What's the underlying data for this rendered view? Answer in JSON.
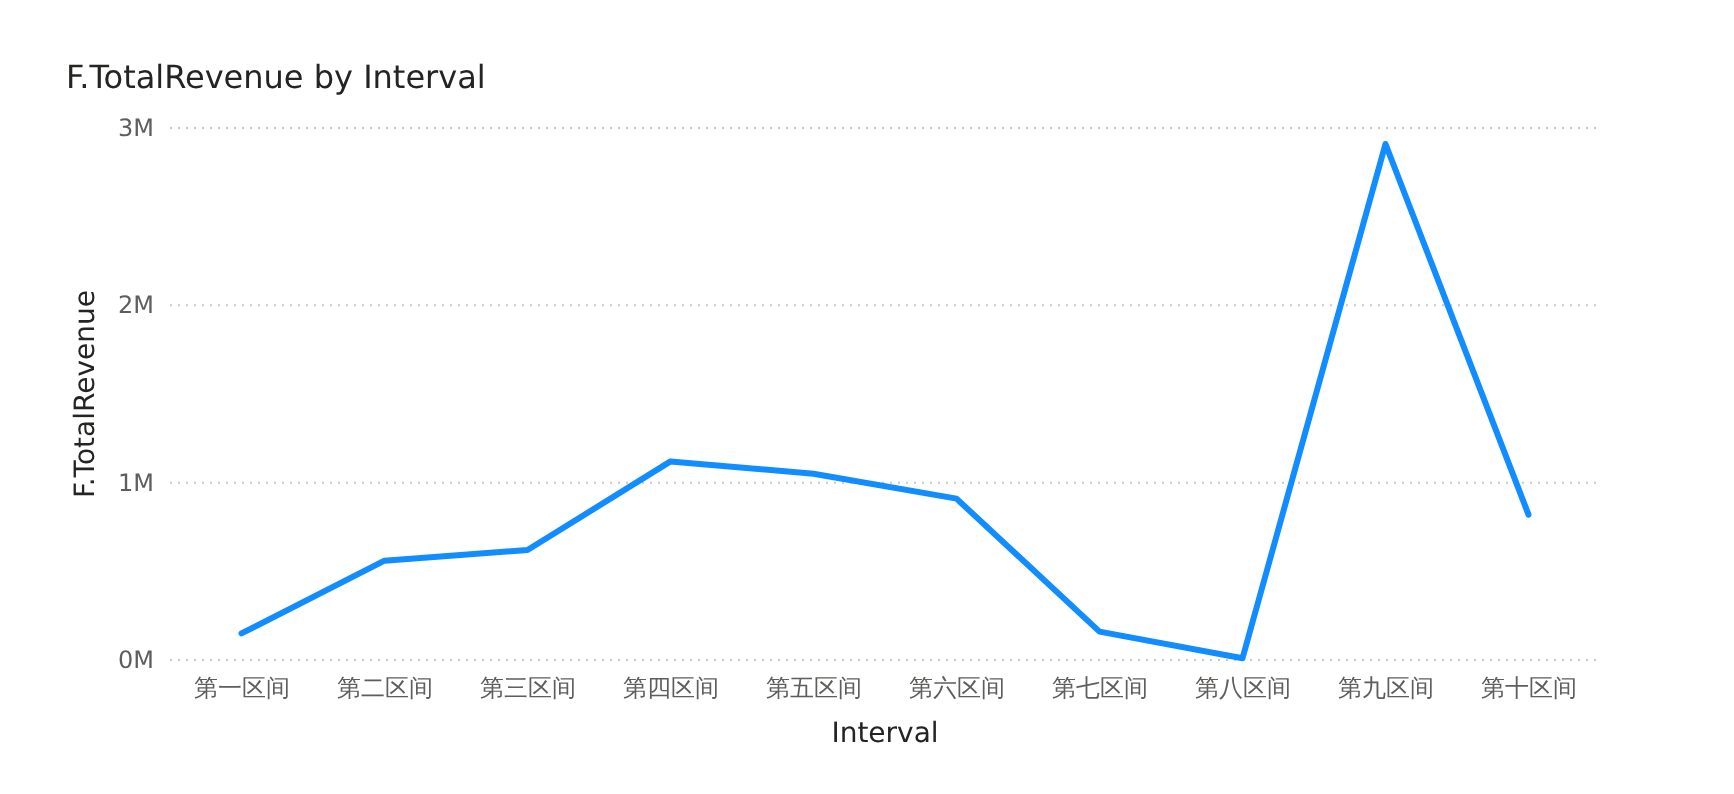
{
  "chart_data": {
    "type": "line",
    "title": "F.TotalRevenue by Interval",
    "xlabel": "Interval",
    "ylabel": "F.TotalRevenue",
    "categories": [
      "第一区间",
      "第二区间",
      "第三区间",
      "第四区间",
      "第五区间",
      "第六区间",
      "第七区间",
      "第八区间",
      "第九区间",
      "第十区间"
    ],
    "series": [
      {
        "color": "#118dff",
        "values": [
          0.15,
          0.56,
          0.62,
          1.12,
          1.05,
          0.91,
          0.16,
          0.01,
          2.91,
          0.82
        ]
      }
    ],
    "ylim": [
      0,
      3
    ],
    "yticks": [
      {
        "value": 0,
        "label": "0M"
      },
      {
        "value": 1,
        "label": "1M"
      },
      {
        "value": 2,
        "label": "2M"
      },
      {
        "value": 3,
        "label": "3M"
      }
    ],
    "grid": "y",
    "marker": "none",
    "line_style": "solid"
  }
}
